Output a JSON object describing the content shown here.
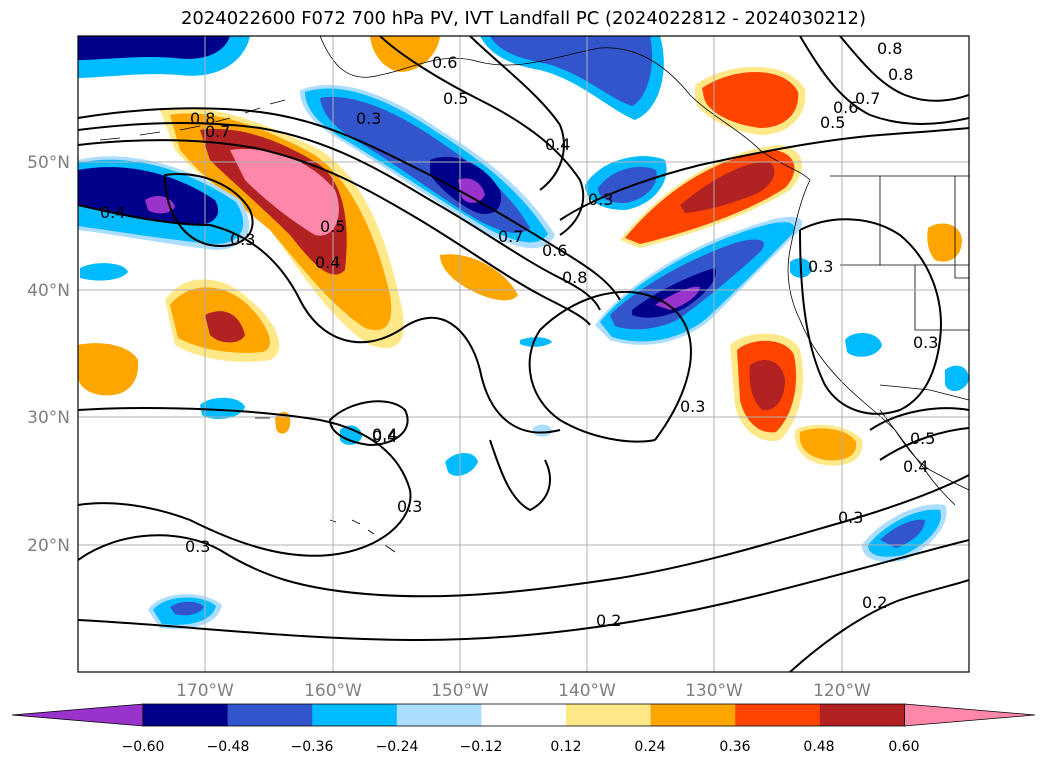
{
  "title": "2024022600 F072 700 hPa PV, IVT Landfall PC (2024022812 - 2024030212)",
  "map": {
    "lon_ticks": [
      "170°W",
      "160°W",
      "150°W",
      "140°W",
      "130°W",
      "120°W"
    ],
    "lat_ticks": [
      "50°N",
      "40°N",
      "30°N",
      "20°N"
    ],
    "contour_labels": [
      "0.8",
      "0.7",
      "0.6",
      "0.5",
      "0.4",
      "0.3",
      "0.3",
      "0.4",
      "0.5",
      "0.4",
      "0.7",
      "0.6",
      "0.8",
      "0.3",
      "0.4",
      "0.5",
      "0.6",
      "0.7",
      "0.8",
      "0.8",
      "0.3",
      "0.3",
      "0.3",
      "0.4",
      "0.3",
      "0.3",
      "0.3",
      "0.5",
      "0.4",
      "0.2",
      "0.2"
    ]
  },
  "colorbar": {
    "ticks": [
      "−0.60",
      "−0.48",
      "−0.36",
      "−0.24",
      "−0.12",
      "0.12",
      "0.24",
      "0.36",
      "0.48",
      "0.60"
    ],
    "colors": [
      "#9933cc",
      "#00008b",
      "#3355cc",
      "#00bbff",
      "#aaddff",
      "#ffffff",
      "#ffe888",
      "#ffa500",
      "#ff4400",
      "#b22222",
      "#ff88aa"
    ]
  }
}
